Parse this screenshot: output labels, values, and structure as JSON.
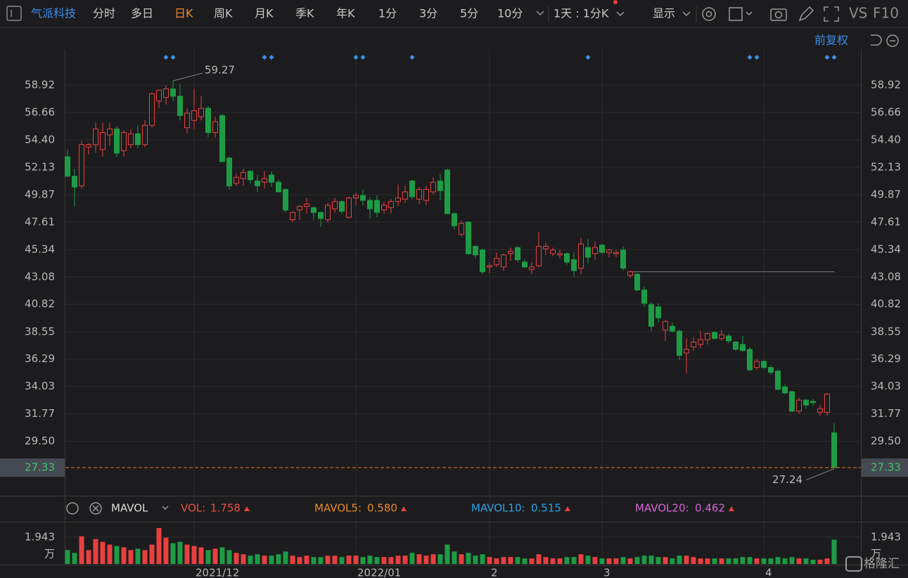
{
  "toolbar": {
    "symbol": "气派科技",
    "periods": [
      "分时",
      "多日",
      "日K",
      "周K",
      "月K",
      "季K",
      "年K",
      "1分",
      "3分",
      "5分",
      "10分"
    ],
    "active_period": 2,
    "interval": "1天 : 1分K",
    "display": "显示",
    "compare": "VS",
    "f10": "F10",
    "adjust": "前复权"
  },
  "watermark": "格隆汇",
  "chart_data": [
    {
      "type": "candlestick",
      "categories": [
        null,
        null,
        null,
        null,
        null,
        null,
        null,
        null,
        null,
        null,
        null,
        null,
        null,
        null,
        null,
        null,
        null,
        null,
        "2021/12",
        null,
        null,
        null,
        null,
        null,
        null,
        null,
        null,
        null,
        null,
        null,
        null,
        null,
        null,
        null,
        null,
        null,
        null,
        null,
        null,
        null,
        null,
        "2022/01",
        null,
        null,
        null,
        null,
        null,
        null,
        null,
        null,
        null,
        null,
        null,
        null,
        null,
        null,
        null,
        null,
        null,
        null,
        "2",
        null,
        null,
        null,
        null,
        null,
        null,
        null,
        null,
        null,
        null,
        null,
        null,
        null,
        null,
        null,
        "3",
        null,
        null,
        null,
        null,
        null,
        null,
        null,
        null,
        null,
        null,
        null,
        null,
        null,
        null,
        null,
        null,
        null,
        null,
        null,
        null,
        null,
        null,
        "4",
        null,
        null,
        null,
        null,
        null,
        null,
        null,
        null,
        null,
        null
      ],
      "open": [
        53.0,
        51.4,
        50.6,
        53.8,
        54.0,
        53.6,
        54.8,
        55.3,
        53.5,
        54.0,
        54.9,
        54.0,
        55.6,
        57.6,
        57.9,
        58.6,
        58.0,
        55.4,
        56.0,
        56.3,
        57.0,
        55.0,
        56.4,
        52.9,
        50.8,
        51.2,
        51.8,
        51.0,
        50.9,
        51.5,
        50.9,
        50.3,
        47.8,
        48.6,
        48.9,
        48.8,
        48.4,
        47.8,
        48.7,
        49.3,
        48.0,
        49.6,
        49.8,
        49.4,
        49.4,
        48.6,
        48.8,
        49.3,
        49.5,
        51.0,
        49.5,
        49.4,
        50.1,
        51.0,
        51.9,
        48.3,
        46.6,
        47.6,
        45.6,
        45.3,
        43.9,
        44.1,
        43.9,
        45.0,
        45.5,
        44.3,
        43.7,
        44.0,
        45.4,
        45.0,
        44.9,
        45.0,
        44.5,
        43.8,
        45.5,
        45.0,
        45.7,
        45.1,
        45.0,
        45.3,
        43.2,
        43.3,
        42.0,
        40.8,
        40.6,
        38.7,
        39.0,
        38.6,
        36.8,
        37.3,
        37.5,
        37.9,
        38.5,
        38.0,
        38.2,
        37.7,
        37.5,
        37.1,
        35.6,
        36.1,
        35.6,
        35.3,
        34.0,
        33.6,
        32.0,
        32.9,
        32.8,
        31.9,
        31.9,
        30.2
      ],
      "high": [
        53.6,
        52.0,
        54.3,
        54.1,
        55.8,
        55.8,
        55.8,
        55.5,
        55.2,
        55.3,
        55.6,
        56.0,
        58.3,
        58.5,
        58.9,
        59.27,
        59.0,
        57.0,
        58.6,
        58.0,
        57.2,
        56.3,
        56.5,
        53.0,
        51.6,
        52.0,
        51.9,
        51.5,
        51.8,
        51.8,
        51.1,
        50.4,
        48.5,
        49.0,
        49.6,
        48.9,
        48.5,
        49.2,
        49.6,
        49.4,
        49.7,
        50.0,
        50.3,
        49.7,
        49.8,
        49.3,
        49.5,
        50.7,
        50.6,
        51.1,
        50.5,
        50.6,
        51.3,
        51.6,
        52.0,
        48.4,
        47.7,
        47.7,
        45.7,
        45.4,
        44.3,
        45.1,
        45.0,
        45.5,
        45.6,
        44.5,
        44.3,
        46.8,
        45.9,
        45.5,
        45.3,
        45.1,
        45.1,
        46.3,
        46.2,
        46.0,
        45.8,
        45.4,
        45.3,
        45.6,
        43.6,
        43.4,
        42.3,
        41.0,
        40.9,
        39.5,
        39.3,
        38.7,
        38.0,
        38.1,
        38.6,
        38.5,
        38.6,
        38.7,
        38.4,
        37.8,
        38.2,
        37.3,
        36.3,
        36.2,
        35.8,
        35.5,
        34.2,
        33.7,
        33.1,
        33.0,
        33.0,
        32.5,
        33.5,
        31.0
      ],
      "low": [
        51.3,
        48.9,
        50.4,
        53.2,
        53.3,
        53.0,
        53.9,
        53.0,
        53.0,
        53.7,
        53.7,
        53.8,
        55.4,
        57.0,
        57.3,
        57.6,
        56.0,
        54.9,
        55.3,
        56.0,
        54.6,
        54.6,
        52.6,
        50.3,
        50.6,
        50.6,
        50.8,
        50.1,
        50.4,
        50.5,
        50.3,
        48.4,
        47.6,
        47.8,
        48.3,
        47.8,
        47.2,
        47.6,
        48.4,
        48.3,
        47.9,
        49.0,
        49.0,
        47.9,
        48.0,
        48.3,
        48.3,
        48.9,
        49.2,
        49.5,
        49.1,
        49.0,
        49.9,
        49.4,
        48.3,
        47.0,
        46.4,
        44.9,
        44.6,
        43.3,
        43.4,
        43.9,
        43.6,
        44.4,
        44.3,
        43.8,
        43.3,
        43.9,
        44.9,
        44.8,
        44.6,
        44.1,
        43.1,
        43.3,
        44.2,
        44.5,
        45.0,
        44.7,
        44.7,
        43.6,
        43.0,
        41.9,
        40.6,
        38.6,
        39.3,
        37.8,
        38.5,
        36.2,
        35.1,
        37.0,
        37.2,
        37.5,
        37.9,
        37.8,
        37.6,
        37.0,
        36.9,
        35.3,
        35.4,
        35.5,
        35.0,
        33.7,
        33.4,
        31.9,
        31.8,
        32.2,
        32.4,
        31.6,
        31.6,
        27.24
      ],
      "close": [
        51.4,
        50.5,
        54.0,
        54.0,
        55.3,
        55.0,
        55.3,
        53.3,
        55.0,
        54.9,
        54.0,
        55.6,
        58.2,
        58.5,
        58.6,
        58.0,
        56.4,
        56.6,
        56.8,
        57.0,
        55.0,
        55.9,
        52.6,
        50.6,
        51.3,
        51.7,
        51.1,
        50.6,
        51.2,
        50.9,
        50.1,
        48.6,
        48.4,
        48.9,
        49.1,
        48.4,
        47.9,
        49.0,
        49.3,
        48.5,
        49.6,
        49.8,
        49.4,
        48.7,
        48.4,
        49.0,
        49.3,
        49.6,
        50.1,
        49.7,
        50.3,
        50.3,
        50.9,
        50.2,
        48.3,
        47.3,
        47.5,
        45.0,
        44.9,
        43.5,
        44.0,
        44.6,
        44.9,
        45.2,
        44.5,
        43.9,
        43.9,
        45.6,
        45.6,
        45.3,
        45.0,
        44.3,
        43.6,
        45.8,
        44.7,
        45.5,
        45.1,
        45.3,
        45.1,
        43.8,
        43.5,
        42.0,
        40.9,
        39.0,
        39.7,
        39.4,
        38.6,
        36.6,
        37.1,
        37.7,
        37.9,
        38.4,
        38.0,
        38.3,
        37.8,
        37.1,
        37.0,
        35.4,
        36.1,
        35.6,
        35.2,
        33.8,
        33.5,
        32.0,
        32.9,
        32.5,
        32.7,
        32.2,
        33.4,
        27.33
      ],
      "up_color": "#e8403f",
      "down_color": "#1e9c45",
      "ylim": [
        25.01,
        61.88
      ],
      "yticks": [
        58.92,
        56.66,
        {
          "value": 54.4,
          "label": "54.40"
        },
        52.13,
        49.87,
        47.61,
        45.34,
        43.08,
        40.82,
        38.55,
        36.29,
        34.03,
        31.77,
        {
          "value": 29.5,
          "label": "29.50"
        }
      ],
      "grid": true,
      "markers": [
        14,
        15,
        28,
        29,
        41,
        42,
        49,
        74,
        97,
        98,
        108,
        109
      ],
      "marker_color": "#3d8fe8",
      "level_line": {
        "value": 43.5,
        "from": 80
      },
      "last_color": "#e8762a"
    },
    {
      "type": "bar",
      "title": "MAVOL",
      "unit": "万",
      "values": [
        1.0,
        0.8,
        2.0,
        1.0,
        1.8,
        1.6,
        1.4,
        1.3,
        1.2,
        1.0,
        1.1,
        1.0,
        1.4,
        2.6,
        1.9,
        1.5,
        1.6,
        1.4,
        1.3,
        1.2,
        1.0,
        1.1,
        1.2,
        1.0,
        0.8,
        0.7,
        0.6,
        0.7,
        0.6,
        0.6,
        0.7,
        0.9,
        0.6,
        0.5,
        0.6,
        0.5,
        0.5,
        0.6,
        0.6,
        0.5,
        0.6,
        0.6,
        0.5,
        0.6,
        0.5,
        0.5,
        0.5,
        0.6,
        0.6,
        0.8,
        0.7,
        0.6,
        0.7,
        0.7,
        1.4,
        0.9,
        0.7,
        0.8,
        0.6,
        0.7,
        0.5,
        0.4,
        0.5,
        0.5,
        0.5,
        0.4,
        0.4,
        0.7,
        0.5,
        0.4,
        0.4,
        0.5,
        0.5,
        0.7,
        0.6,
        0.5,
        0.4,
        0.4,
        0.4,
        0.5,
        0.4,
        0.5,
        0.6,
        0.6,
        0.5,
        0.5,
        0.4,
        0.6,
        0.6,
        0.5,
        0.4,
        0.4,
        0.4,
        0.4,
        0.4,
        0.4,
        0.5,
        0.5,
        0.4,
        0.4,
        0.4,
        0.5,
        0.4,
        0.5,
        0.4,
        0.4,
        0.3,
        0.3,
        0.4,
        1.758
      ],
      "ylim": [
        0,
        2.9
      ],
      "yticks": [
        1.943
      ],
      "indicators": [
        {
          "name": "VOL:",
          "value": 1.758,
          "color": "#e8504a"
        },
        {
          "name": "MAVOL5:",
          "value": 0.58,
          "value_label": "0.580",
          "color": "#e8882a"
        },
        {
          "name": "MAVOL10:",
          "value": 0.515,
          "color": "#2ea3e8"
        },
        {
          "name": "MAVOL20:",
          "value": 0.462,
          "color": "#d866d8"
        }
      ]
    }
  ]
}
